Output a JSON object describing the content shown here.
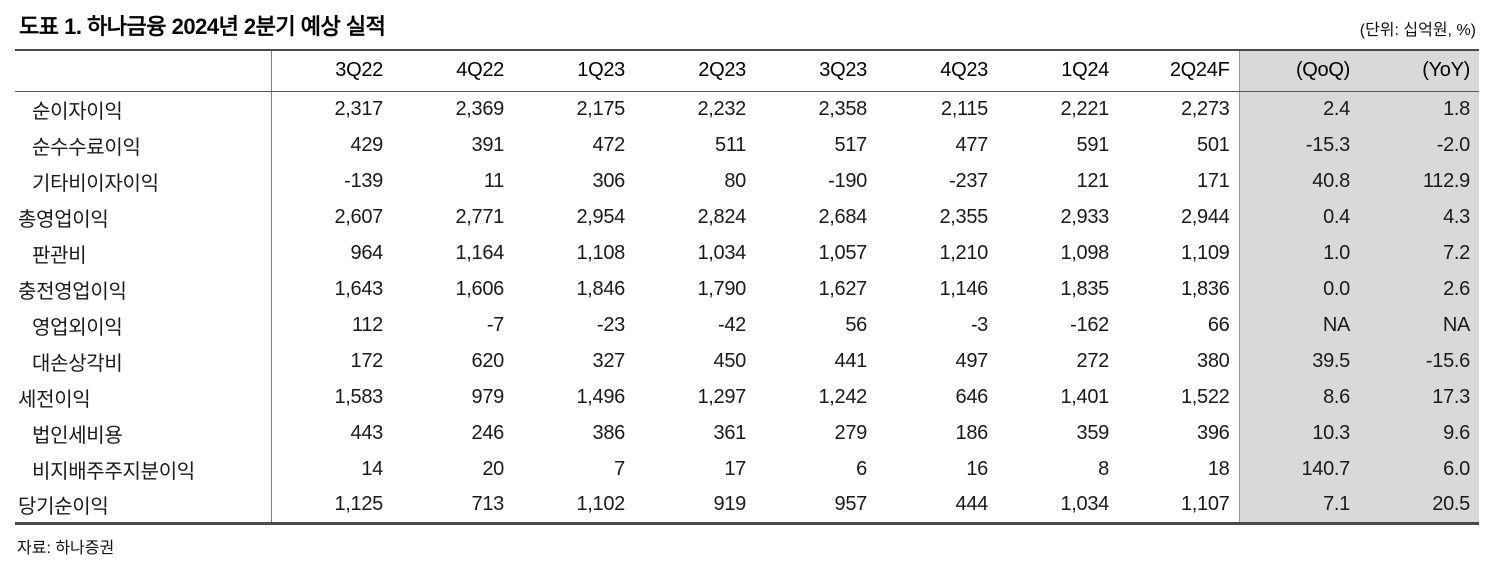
{
  "header": {
    "title": "도표 1. 하나금융 2024년 2분기 예상 실적",
    "unit_note": "(단위: 십억원, %)"
  },
  "table": {
    "row_label_header": "",
    "columns": [
      "3Q22",
      "4Q22",
      "1Q23",
      "2Q23",
      "3Q23",
      "4Q23",
      "1Q24",
      "2Q24F",
      "(QoQ)",
      "(YoY)"
    ],
    "highlight_columns": [
      "(QoQ)",
      "(YoY)"
    ],
    "highlight_color": "#d9d9d9",
    "rows": [
      {
        "label": "순이자이익",
        "indent": true,
        "values": [
          "2,317",
          "2,369",
          "2,175",
          "2,232",
          "2,358",
          "2,115",
          "2,221",
          "2,273",
          "2.4",
          "1.8"
        ]
      },
      {
        "label": "순수수료이익",
        "indent": true,
        "values": [
          "429",
          "391",
          "472",
          "511",
          "517",
          "477",
          "591",
          "501",
          "-15.3",
          "-2.0"
        ]
      },
      {
        "label": "기타비이자이익",
        "indent": true,
        "values": [
          "-139",
          "11",
          "306",
          "80",
          "-190",
          "-237",
          "121",
          "171",
          "40.8",
          "112.9"
        ]
      },
      {
        "label": "총영업이익",
        "indent": false,
        "values": [
          "2,607",
          "2,771",
          "2,954",
          "2,824",
          "2,684",
          "2,355",
          "2,933",
          "2,944",
          "0.4",
          "4.3"
        ]
      },
      {
        "label": "판관비",
        "indent": true,
        "values": [
          "964",
          "1,164",
          "1,108",
          "1,034",
          "1,057",
          "1,210",
          "1,098",
          "1,109",
          "1.0",
          "7.2"
        ]
      },
      {
        "label": "충전영업이익",
        "indent": false,
        "values": [
          "1,643",
          "1,606",
          "1,846",
          "1,790",
          "1,627",
          "1,146",
          "1,835",
          "1,836",
          "0.0",
          "2.6"
        ]
      },
      {
        "label": "영업외이익",
        "indent": true,
        "values": [
          "112",
          "-7",
          "-23",
          "-42",
          "56",
          "-3",
          "-162",
          "66",
          "NA",
          "NA"
        ]
      },
      {
        "label": "대손상각비",
        "indent": true,
        "values": [
          "172",
          "620",
          "327",
          "450",
          "441",
          "497",
          "272",
          "380",
          "39.5",
          "-15.6"
        ]
      },
      {
        "label": "세전이익",
        "indent": false,
        "values": [
          "1,583",
          "979",
          "1,496",
          "1,297",
          "1,242",
          "646",
          "1,401",
          "1,522",
          "8.6",
          "17.3"
        ]
      },
      {
        "label": "법인세비용",
        "indent": true,
        "values": [
          "443",
          "246",
          "386",
          "361",
          "279",
          "186",
          "359",
          "396",
          "10.3",
          "9.6"
        ]
      },
      {
        "label": "비지배주주지분이익",
        "indent": true,
        "values": [
          "14",
          "20",
          "7",
          "17",
          "6",
          "16",
          "8",
          "18",
          "140.7",
          "6.0"
        ]
      },
      {
        "label": "당기순이익",
        "indent": false,
        "values": [
          "1,125",
          "713",
          "1,102",
          "919",
          "957",
          "444",
          "1,034",
          "1,107",
          "7.1",
          "20.5"
        ]
      }
    ]
  },
  "footer": {
    "source": "자료: 하나증권"
  }
}
